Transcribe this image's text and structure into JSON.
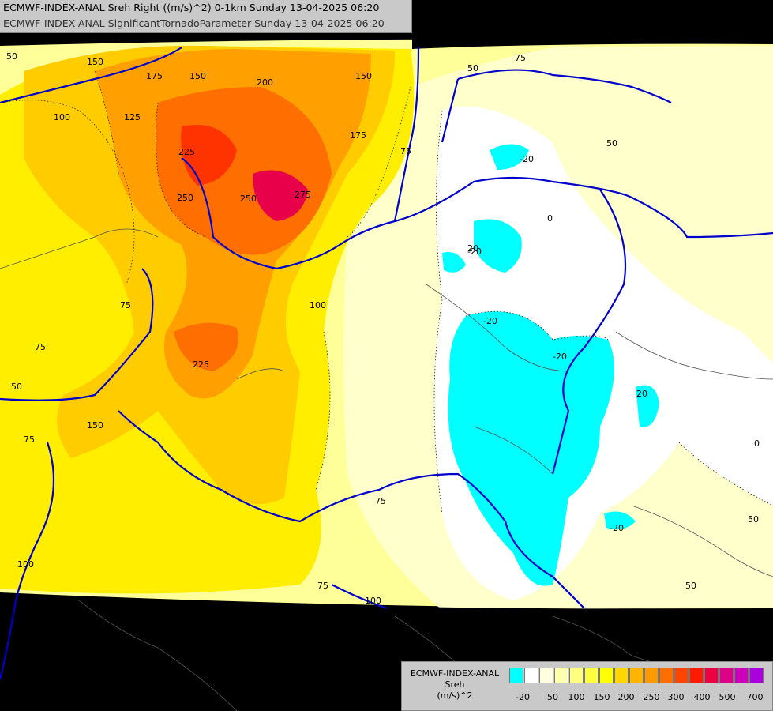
{
  "title": {
    "line1": "ECMWF-INDEX-ANAL Sreh Right ((m/s)^2) 0-1km Sunday 13-04-2025 06:20",
    "line2": "ECMWF-INDEX-ANAL SignificantTornadoParameter Sunday 13-04-2025 06:20"
  },
  "legend": {
    "model": "ECMWF-INDEX-ANAL",
    "variable": "Sreh",
    "unit": "(m/s)^2",
    "colors": [
      "#00ffff",
      "#ffffff",
      "#ffffe0",
      "#ffffb0",
      "#ffff80",
      "#ffff40",
      "#ffff00",
      "#ffd700",
      "#ffb400",
      "#ff9900",
      "#ff6e00",
      "#ff4400",
      "#ff1a00",
      "#ee0044",
      "#dd0088",
      "#cc00bb",
      "#aa00dd",
      "#8800ee",
      "#5500cc",
      "#2200aa",
      "#000088"
    ],
    "tick_labels": [
      "-20",
      "50",
      "100",
      "150",
      "200",
      "250",
      "300",
      "400",
      "500",
      "700"
    ]
  },
  "contour_labels": [
    "50",
    "150",
    "175",
    "150",
    "200",
    "150",
    "125",
    "100",
    "175",
    "75",
    "225",
    "250",
    "250",
    "275",
    "75",
    "100",
    "225",
    "75",
    "50",
    "150",
    "75",
    "75",
    "100",
    "75",
    "100",
    "-20",
    "-20",
    "0",
    "20",
    "-20",
    "-20",
    "20",
    "0",
    "50",
    "-20",
    "50",
    "50",
    "75",
    "50"
  ]
}
